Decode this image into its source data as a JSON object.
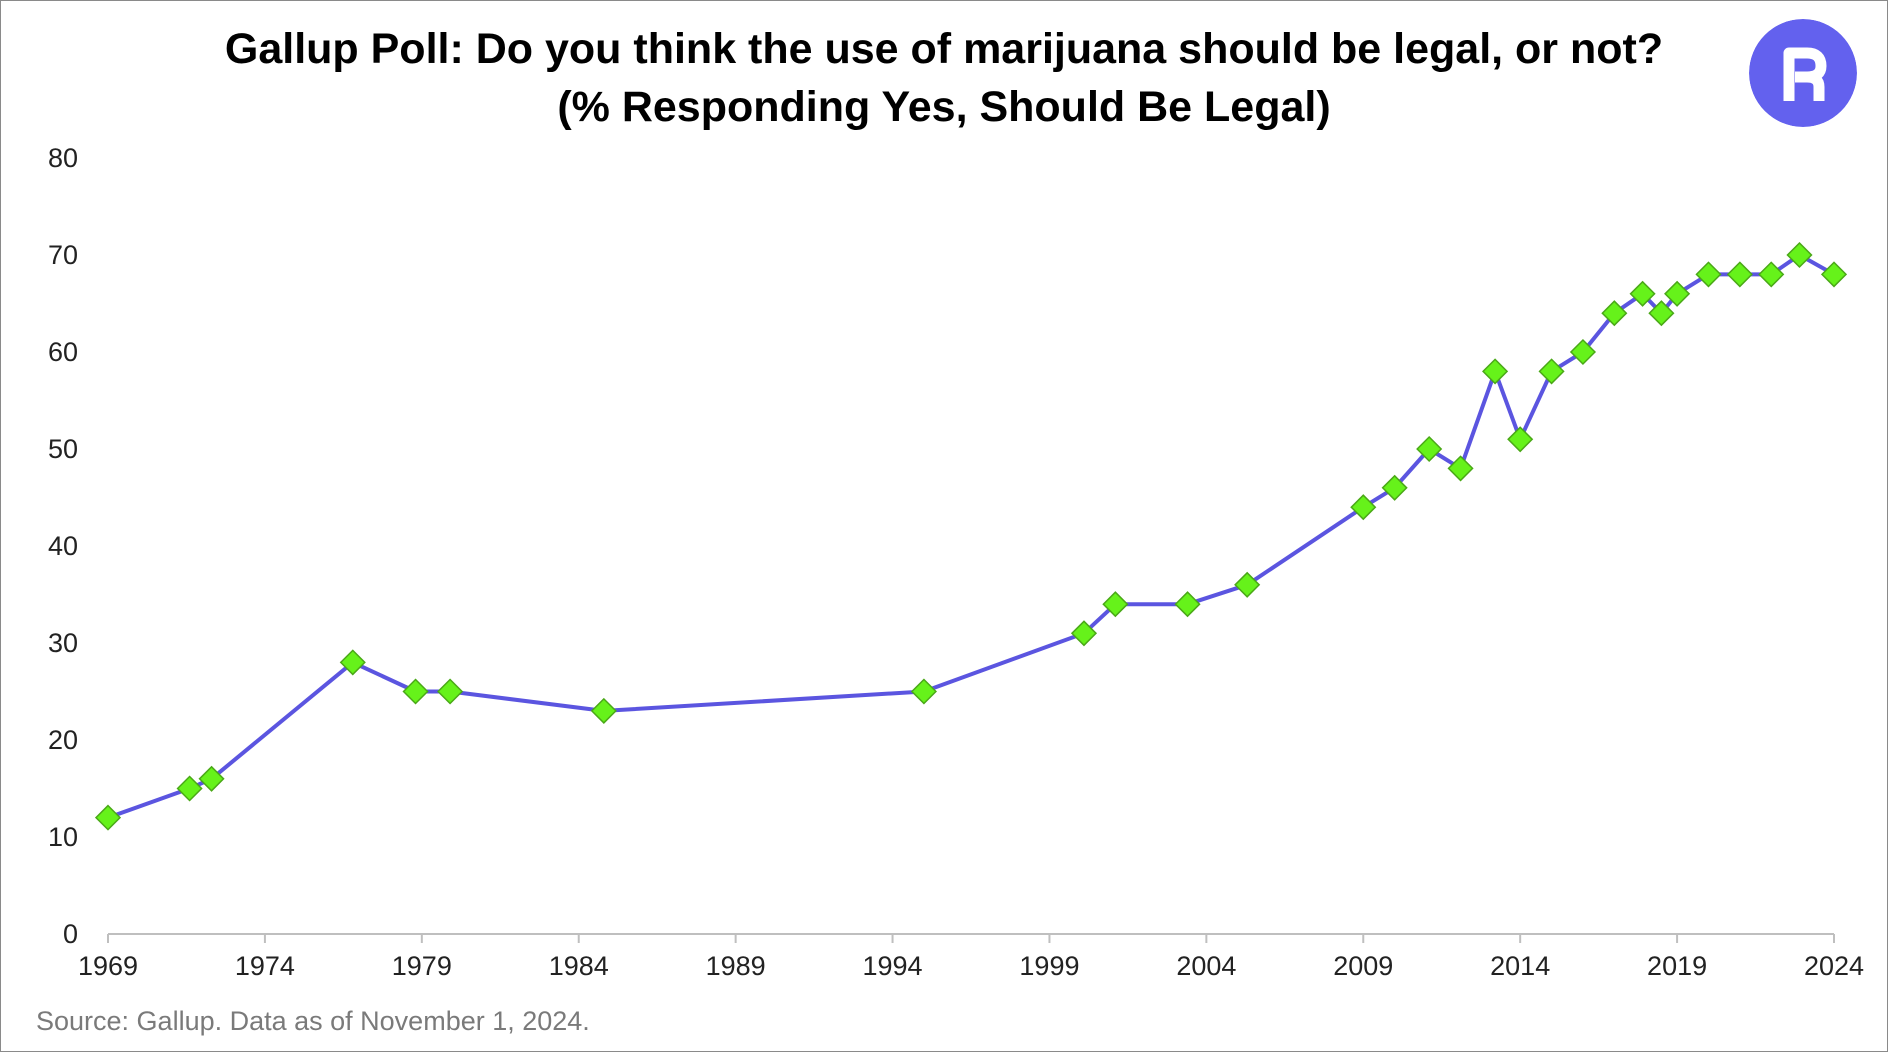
{
  "colors": {
    "line": "#5b55e0",
    "marker_fill": "#66f21a",
    "marker_stroke": "#4aa817",
    "axis": "#bfbfbf",
    "logo_bg": "#6361ee",
    "logo_fg": "#ffffff"
  },
  "logo": {
    "icon": "robinhood-logo-icon"
  },
  "source_text": "Source: Gallup. Data as of November 1, 2024.",
  "chart_data": {
    "type": "line",
    "title": "Gallup Poll: Do you think the use of marijuana should be legal, or not?",
    "subtitle": "(% Responding Yes, Should Be Legal)",
    "xlabel": "",
    "ylabel": "",
    "xlim": [
      1969,
      2024
    ],
    "ylim": [
      0,
      80
    ],
    "yticks": [
      0,
      10,
      20,
      30,
      40,
      50,
      60,
      70,
      80
    ],
    "xticks": [
      1969,
      1974,
      1979,
      1984,
      1989,
      1994,
      1999,
      2004,
      2009,
      2014,
      2019,
      2024
    ],
    "grid": false,
    "legend": "none",
    "marker": "diamond",
    "series": [
      {
        "points": [
          [
            1969.0,
            12
          ],
          [
            1971.6,
            15
          ],
          [
            1972.3,
            16
          ],
          [
            1976.8,
            28
          ],
          [
            1978.8,
            25
          ],
          [
            1979.9,
            25
          ],
          [
            1984.8,
            23
          ],
          [
            1995.0,
            25
          ],
          [
            2000.1,
            31
          ],
          [
            2001.1,
            34
          ],
          [
            2003.4,
            34
          ],
          [
            2005.3,
            36
          ],
          [
            2009.0,
            44
          ],
          [
            2010.0,
            46
          ],
          [
            2011.1,
            50
          ],
          [
            2012.1,
            48
          ],
          [
            2013.2,
            58
          ],
          [
            2014.0,
            51
          ],
          [
            2015.0,
            58
          ],
          [
            2016.0,
            60
          ],
          [
            2017.0,
            64
          ],
          [
            2017.9,
            66
          ],
          [
            2018.5,
            64
          ],
          [
            2019.0,
            66
          ],
          [
            2020.0,
            68
          ],
          [
            2021.0,
            68
          ],
          [
            2022.0,
            68
          ],
          [
            2022.9,
            70
          ],
          [
            2024.0,
            68
          ]
        ]
      }
    ]
  }
}
